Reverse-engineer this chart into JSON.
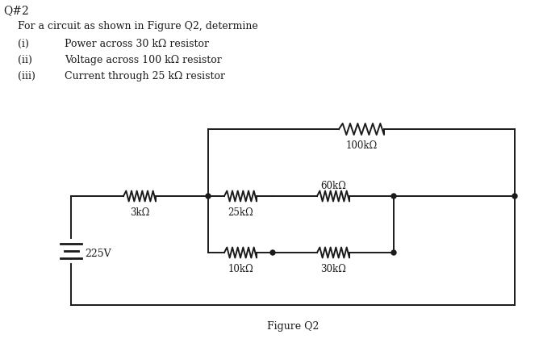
{
  "title": "Q#2",
  "figure_label": "Figure Q2",
  "problem_text": "For a circuit as shown in Figure Q2, determine",
  "items": [
    [
      "(i)",
      "Power across 30 kΩ resistor"
    ],
    [
      "(ii)",
      "Voltage across 100 kΩ resistor"
    ],
    [
      "(iii)",
      "Current through 25 kΩ resistor"
    ]
  ],
  "background_color": "#ffffff",
  "line_color": "#1a1a1a",
  "text_color": "#1a1a1a",
  "R100k": "100kΩ",
  "R3k": "3kΩ",
  "R25k": "25kΩ",
  "R10k": "10kΩ",
  "R60k": "60kΩ",
  "R30k": "30kΩ",
  "voltage_label": "225V",
  "lw": 1.4
}
